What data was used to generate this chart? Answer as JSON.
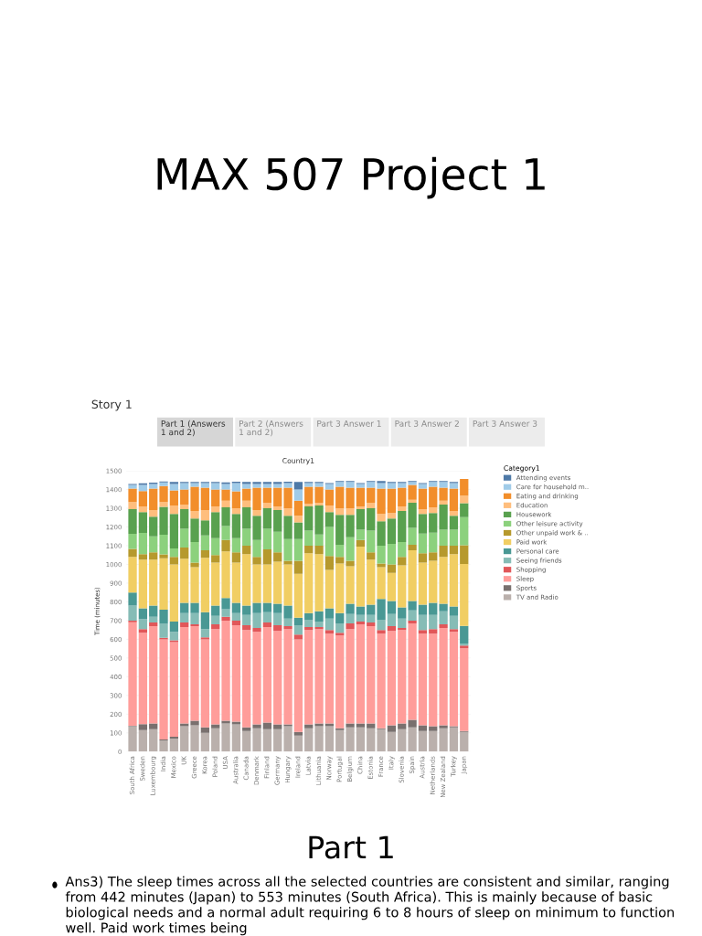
{
  "chart_data": {
    "type": "bar",
    "stacked": true,
    "title": "Country1",
    "ylabel": "Time (minutes)",
    "legend_title": "Category1",
    "legend": "right",
    "grid": "y",
    "ylim": [
      0,
      1500
    ],
    "yticks": [
      0,
      100,
      200,
      300,
      400,
      500,
      600,
      700,
      800,
      900,
      1000,
      1100,
      1200,
      1300,
      1400,
      1500
    ],
    "annotations": [
      "MAX 507 Project 1",
      "Story 1",
      "Part 1 (Answers 1 and 2)",
      "Part 2 (Answers 1 and 2)",
      "Part 3 Answer 1",
      "Part 3 Answer 2",
      "Part 3 Answer 3",
      "Part 1",
      "Ans3) The sleep times across all the selected countries are consistent and similar, ranging from 442 minutes (Japan) to 553 minutes (South Africa). This is mainly because of basic biological needs and a normal adult requiring 6 to 8 hours of sleep on minimum to function well. Paid work times being"
    ],
    "categories": [
      "South Africa",
      "Sweden",
      "Luxembourg",
      "India",
      "Mexico",
      "UK",
      "Greece",
      "Korea",
      "Poland",
      "USA",
      "Australia",
      "Canada",
      "Denmark",
      "Finland",
      "Germany",
      "Hungary",
      "Ireland",
      "Latvia",
      "Lithuania",
      "Norway",
      "Portugal",
      "Belgium",
      "China",
      "Estonia",
      "France",
      "Italy",
      "Slovenia",
      "Spain",
      "Austria",
      "Netherlands",
      "New Zealand",
      "Turkey",
      "Japan"
    ],
    "series": [
      {
        "name": "TV and Radio",
        "color": "#bab0ac",
        "values": [
          135,
          115,
          120,
          60,
          70,
          135,
          140,
          100,
          125,
          150,
          145,
          110,
          125,
          120,
          120,
          135,
          85,
          125,
          135,
          135,
          115,
          130,
          130,
          125,
          120,
          105,
          120,
          130,
          110,
          110,
          125,
          130,
          105
        ]
      },
      {
        "name": "Sports",
        "color": "#79706e",
        "values": [
          3,
          32,
          30,
          5,
          10,
          15,
          25,
          30,
          20,
          15,
          15,
          20,
          20,
          35,
          25,
          10,
          20,
          20,
          15,
          15,
          10,
          20,
          20,
          25,
          5,
          35,
          30,
          40,
          30,
          25,
          15,
          5,
          5
        ]
      },
      {
        "name": "Sleep",
        "color": "#ff9d9a",
        "values": [
          553,
          488,
          520,
          535,
          505,
          515,
          505,
          470,
          510,
          535,
          515,
          520,
          495,
          510,
          500,
          510,
          495,
          505,
          505,
          480,
          495,
          505,
          530,
          520,
          505,
          505,
          500,
          515,
          490,
          495,
          520,
          505,
          442
        ]
      },
      {
        "name": "Shopping",
        "color": "#e15759",
        "values": [
          9,
          20,
          20,
          8,
          10,
          25,
          10,
          10,
          25,
          20,
          25,
          25,
          20,
          25,
          30,
          15,
          25,
          15,
          10,
          20,
          15,
          30,
          15,
          20,
          20,
          25,
          10,
          15,
          20,
          25,
          20,
          15,
          15
        ]
      },
      {
        "name": "Seeing friends",
        "color": "#86bcb6",
        "values": [
          80,
          53,
          30,
          75,
          45,
          50,
          60,
          45,
          45,
          40,
          40,
          55,
          80,
          55,
          65,
          40,
          50,
          40,
          30,
          60,
          50,
          50,
          35,
          40,
          55,
          65,
          50,
          55,
          80,
          75,
          70,
          70,
          10
        ]
      },
      {
        "name": "Personal care",
        "color": "#499894",
        "values": [
          70,
          57,
          60,
          75,
          55,
          55,
          55,
          90,
          55,
          60,
          55,
          50,
          55,
          50,
          50,
          70,
          40,
          35,
          55,
          55,
          55,
          55,
          45,
          55,
          110,
          70,
          60,
          50,
          55,
          65,
          40,
          50,
          95
        ]
      },
      {
        "name": "Paid work",
        "color": "#f1ce63",
        "values": [
          190,
          260,
          245,
          275,
          305,
          235,
          190,
          290,
          230,
          250,
          215,
          275,
          205,
          205,
          225,
          220,
          235,
          320,
          305,
          205,
          265,
          200,
          320,
          240,
          170,
          150,
          225,
          270,
          225,
          225,
          250,
          280,
          330
        ]
      },
      {
        "name": "Other unpaid work & ..",
        "color": "#b6992d",
        "values": [
          43,
          30,
          40,
          20,
          40,
          60,
          25,
          40,
          40,
          60,
          55,
          45,
          40,
          80,
          50,
          20,
          70,
          40,
          45,
          75,
          35,
          30,
          35,
          40,
          20,
          45,
          45,
          30,
          50,
          45,
          60,
          45,
          100
        ]
      },
      {
        "name": "Other leisure activity",
        "color": "#8cd17d",
        "values": [
          80,
          113,
          85,
          105,
          45,
          100,
          110,
          80,
          90,
          75,
          75,
          90,
          90,
          110,
          110,
          115,
          115,
          80,
          60,
          155,
          65,
          125,
          55,
          115,
          95,
          110,
          80,
          90,
          105,
          105,
          85,
          85,
          150
        ]
      },
      {
        "name": "Housework",
        "color": "#59a14f",
        "values": [
          132,
          112,
          105,
          150,
          185,
          105,
          125,
          80,
          140,
          100,
          130,
          115,
          130,
          110,
          115,
          125,
          90,
          130,
          155,
          80,
          160,
          120,
          110,
          120,
          130,
          135,
          165,
          135,
          105,
          105,
          135,
          75,
          75
        ]
      },
      {
        "name": "Education",
        "color": "#ffbe7d",
        "values": [
          38,
          30,
          35,
          25,
          45,
          25,
          40,
          55,
          30,
          35,
          30,
          35,
          30,
          30,
          20,
          40,
          35,
          15,
          15,
          35,
          35,
          35,
          15,
          30,
          40,
          30,
          25,
          15,
          25,
          30,
          20,
          25,
          40
        ]
      },
      {
        "name": "Eating and drinking",
        "color": "#f28e2b",
        "values": [
          72,
          82,
          115,
          85,
          80,
          80,
          130,
          120,
          90,
          60,
          90,
          65,
          120,
          80,
          100,
          110,
          80,
          90,
          85,
          85,
          115,
          110,
          100,
          80,
          135,
          130,
          100,
          80,
          110,
          110,
          70,
          120,
          90
        ]
      },
      {
        "name": "Care for household m..",
        "color": "#a0cbe8",
        "values": [
          20,
          33,
          25,
          20,
          35,
          35,
          20,
          25,
          35,
          30,
          45,
          25,
          20,
          20,
          20,
          25,
          60,
          20,
          20,
          30,
          25,
          30,
          20,
          30,
          30,
          30,
          25,
          15,
          25,
          25,
          30,
          30,
          0
        ]
      },
      {
        "name": "Attending events",
        "color": "#4e79a7",
        "values": [
          5,
          8,
          7,
          5,
          10,
          5,
          5,
          5,
          5,
          8,
          7,
          10,
          10,
          10,
          10,
          7,
          40,
          6,
          5,
          5,
          5,
          5,
          5,
          5,
          10,
          5,
          5,
          5,
          5,
          5,
          5,
          5,
          0
        ]
      }
    ]
  }
}
